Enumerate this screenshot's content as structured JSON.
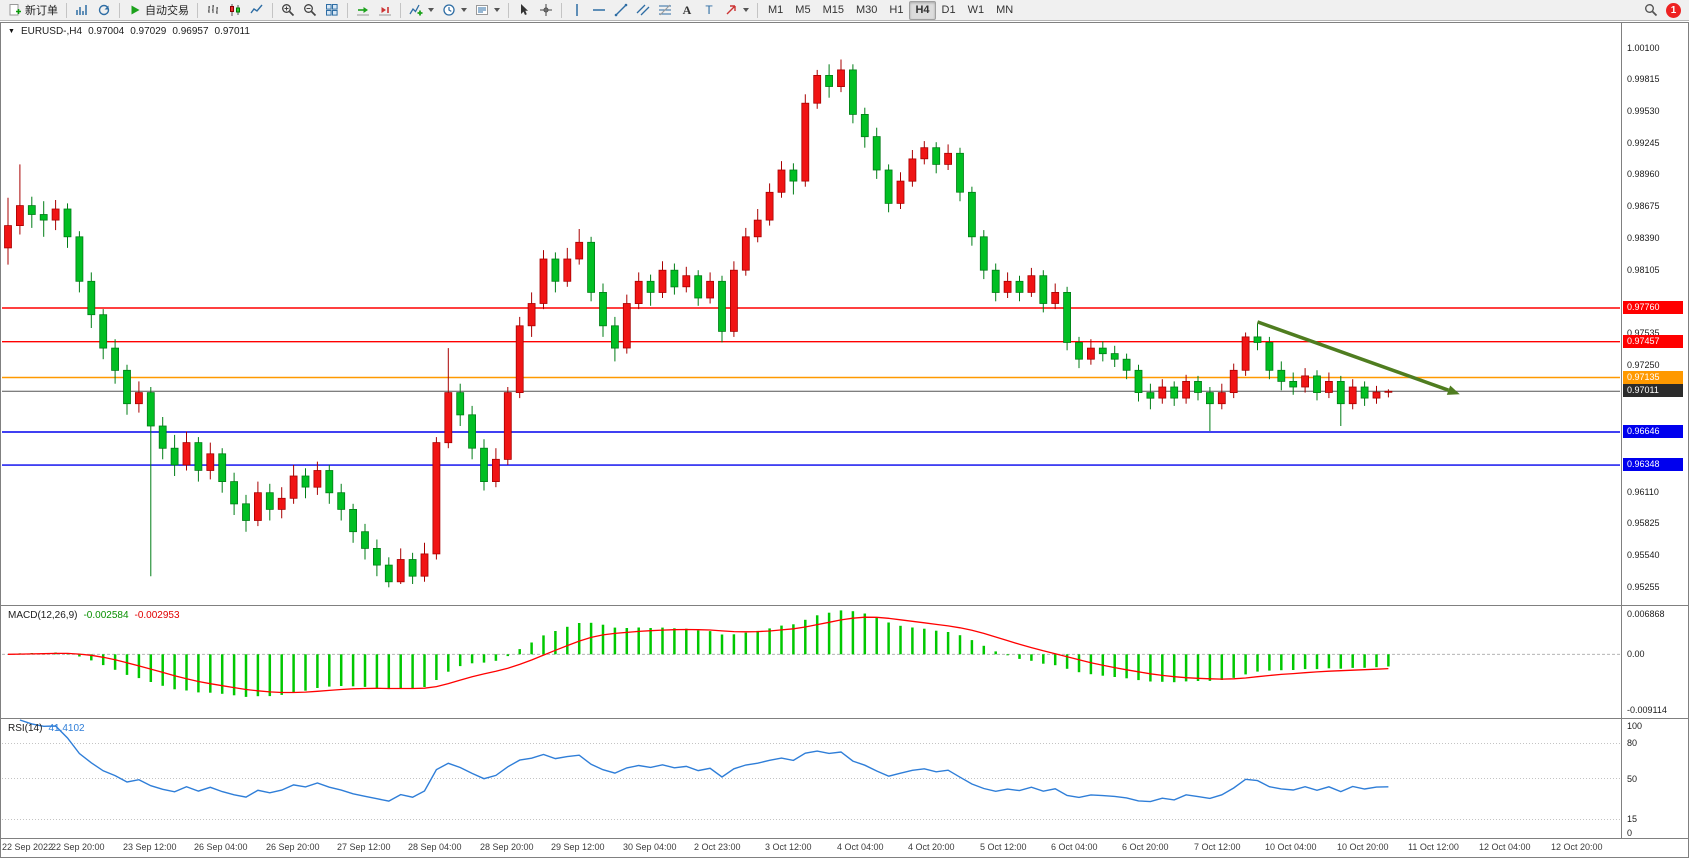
{
  "toolbar": {
    "groups": [
      {
        "name": "orders",
        "items": [
          {
            "name": "new-order-button",
            "icon": "new-order",
            "label": "新订单"
          }
        ]
      },
      {
        "name": "windows",
        "items": [
          {
            "name": "charts-window-button",
            "icon": "charts"
          },
          {
            "name": "refresh-button",
            "icon": "refresh"
          }
        ]
      },
      {
        "name": "autotrade",
        "items": [
          {
            "name": "autotrade-button",
            "icon": "autotrade",
            "label": "自动交易"
          }
        ]
      },
      {
        "name": "chart-type",
        "items": [
          {
            "name": "bar-chart-button",
            "icon": "bars"
          },
          {
            "name": "candle-chart-button",
            "icon": "candles"
          },
          {
            "name": "line-chart-button",
            "icon": "line"
          }
        ]
      },
      {
        "name": "zoom",
        "items": [
          {
            "name": "zoom-in-button",
            "icon": "zoom-in"
          },
          {
            "name": "zoom-out-button",
            "icon": "zoom-out"
          },
          {
            "name": "tile-windows-button",
            "icon": "tile"
          }
        ]
      },
      {
        "name": "scroll",
        "items": [
          {
            "name": "auto-scroll-button",
            "icon": "auto-scroll"
          },
          {
            "name": "chart-shift-button",
            "icon": "chart-shift"
          }
        ]
      },
      {
        "name": "insert",
        "items": [
          {
            "name": "indicators-button",
            "icon": "indicator-add",
            "caret": true
          },
          {
            "name": "periods-button",
            "icon": "clock",
            "caret": true
          },
          {
            "name": "templates-button",
            "icon": "template",
            "caret": true
          }
        ]
      },
      {
        "name": "pointer",
        "items": [
          {
            "name": "cursor-button",
            "icon": "cursor"
          },
          {
            "name": "crosshair-button",
            "icon": "crosshair"
          }
        ]
      },
      {
        "name": "objects",
        "items": [
          {
            "name": "vline-button",
            "icon": "vline"
          },
          {
            "name": "hline-button",
            "icon": "hline"
          },
          {
            "name": "trendline-button",
            "icon": "trendline"
          },
          {
            "name": "channel-button",
            "icon": "channel"
          },
          {
            "name": "fibonacci-button",
            "icon": "fibo"
          },
          {
            "name": "text-button",
            "icon": "text"
          },
          {
            "name": "label-button",
            "icon": "label"
          },
          {
            "name": "arrows-button",
            "icon": "arrow",
            "caret": true
          }
        ]
      }
    ],
    "timeframes": [
      {
        "label": "M1",
        "active": false
      },
      {
        "label": "M5",
        "active": false
      },
      {
        "label": "M15",
        "active": false
      },
      {
        "label": "M30",
        "active": false
      },
      {
        "label": "H1",
        "active": false
      },
      {
        "label": "H4",
        "active": true
      },
      {
        "label": "D1",
        "active": false
      },
      {
        "label": "W1",
        "active": false
      },
      {
        "label": "MN",
        "active": false
      }
    ],
    "right": {
      "badge": "1"
    }
  },
  "chart_header": {
    "symbol_period": "EURUSD-,H4",
    "open": "0.97004",
    "high": "0.97029",
    "low": "0.96957",
    "close": "0.97011"
  },
  "indicators": {
    "macd": {
      "label": "MACD(12,26,9)",
      "value_main": "-0.002584",
      "value_signal": "-0.002953",
      "scale_max": "0.006868",
      "scale_zero": "0.00",
      "scale_min": "-0.009114"
    },
    "rsi": {
      "label": "RSI(14)",
      "value": "41.4102",
      "scale_top": "100",
      "scale_bottom": "0",
      "levels": [
        80,
        50,
        15
      ]
    }
  },
  "price_axis_ticks": [
    "1.00100",
    "0.99815",
    "0.99530",
    "0.99245",
    "0.98960",
    "0.98675",
    "0.98390",
    "0.98105",
    "0.97820",
    "0.97535",
    "0.97250",
    "0.96965",
    "0.96680",
    "0.96395",
    "0.96110",
    "0.95825",
    "0.95540",
    "0.95255"
  ],
  "price_markers": [
    {
      "label": "0.97760",
      "price": 0.9776,
      "color": "#ff0000",
      "current": false
    },
    {
      "label": "0.97457",
      "price": 0.97457,
      "color": "#ff0000",
      "current": false
    },
    {
      "label": "0.97135",
      "price": 0.97135,
      "color": "#ff9900",
      "current": false
    },
    {
      "label": "0.97011",
      "price": 0.97011,
      "color": "#2b2b2b",
      "current": true
    },
    {
      "label": "0.96646",
      "price": 0.96646,
      "color": "#0000ee",
      "current": false
    },
    {
      "label": "0.96348",
      "price": 0.96348,
      "color": "#0000ee",
      "current": false
    }
  ],
  "time_axis": [
    "22 Sep 2022",
    "22 Sep 20:00",
    "23 Sep 12:00",
    "26 Sep 04:00",
    "26 Sep 20:00",
    "27 Sep 12:00",
    "28 Sep 04:00",
    "28 Sep 20:00",
    "29 Sep 12:00",
    "30 Sep 04:00",
    "2 Oct 23:00",
    "3 Oct 12:00",
    "4 Oct 04:00",
    "4 Oct 20:00",
    "5 Oct 12:00",
    "6 Oct 04:00",
    "6 Oct 20:00",
    "7 Oct 12:00",
    "10 Oct 04:00",
    "10 Oct 20:00",
    "11 Oct 12:00",
    "12 Oct 04:00",
    "12 Oct 20:00"
  ],
  "chart_data": {
    "type": "candlestick",
    "symbol": "EURUSD-",
    "period": "H4",
    "ylim": [
      0.951,
      1.0033
    ],
    "label_every_bars": 6,
    "candles": [
      [
        0.983,
        0.9875,
        0.9815,
        0.985
      ],
      [
        0.985,
        0.9905,
        0.9842,
        0.9868
      ],
      [
        0.9868,
        0.9876,
        0.9848,
        0.986
      ],
      [
        0.986,
        0.9872,
        0.984,
        0.9855
      ],
      [
        0.9855,
        0.9873,
        0.9846,
        0.9865
      ],
      [
        0.9865,
        0.987,
        0.983,
        0.984
      ],
      [
        0.984,
        0.9845,
        0.979,
        0.98
      ],
      [
        0.98,
        0.9808,
        0.9758,
        0.977
      ],
      [
        0.977,
        0.9775,
        0.973,
        0.974
      ],
      [
        0.974,
        0.9748,
        0.9708,
        0.972
      ],
      [
        0.972,
        0.9725,
        0.968,
        0.969
      ],
      [
        0.969,
        0.971,
        0.9682,
        0.97
      ],
      [
        0.97,
        0.9705,
        0.9535,
        0.967
      ],
      [
        0.967,
        0.9678,
        0.964,
        0.965
      ],
      [
        0.965,
        0.9662,
        0.9625,
        0.9635
      ],
      [
        0.9635,
        0.9665,
        0.963,
        0.9655
      ],
      [
        0.9655,
        0.966,
        0.962,
        0.963
      ],
      [
        0.963,
        0.9655,
        0.9622,
        0.9645
      ],
      [
        0.9645,
        0.965,
        0.961,
        0.962
      ],
      [
        0.962,
        0.9628,
        0.959,
        0.96
      ],
      [
        0.96,
        0.9608,
        0.9575,
        0.9585
      ],
      [
        0.9585,
        0.962,
        0.958,
        0.961
      ],
      [
        0.961,
        0.9618,
        0.9585,
        0.9595
      ],
      [
        0.9595,
        0.9615,
        0.9587,
        0.9605
      ],
      [
        0.9605,
        0.9635,
        0.96,
        0.9625
      ],
      [
        0.9625,
        0.9632,
        0.9605,
        0.9615
      ],
      [
        0.9615,
        0.9638,
        0.9608,
        0.963
      ],
      [
        0.963,
        0.9635,
        0.96,
        0.961
      ],
      [
        0.961,
        0.9618,
        0.9585,
        0.9595
      ],
      [
        0.9595,
        0.96,
        0.9565,
        0.9575
      ],
      [
        0.9575,
        0.9582,
        0.955,
        0.956
      ],
      [
        0.956,
        0.9568,
        0.9535,
        0.9545
      ],
      [
        0.9545,
        0.9552,
        0.9525,
        0.953
      ],
      [
        0.953,
        0.956,
        0.9528,
        0.955
      ],
      [
        0.955,
        0.9556,
        0.9528,
        0.9535
      ],
      [
        0.9535,
        0.9565,
        0.953,
        0.9555
      ],
      [
        0.9555,
        0.966,
        0.955,
        0.9655
      ],
      [
        0.9655,
        0.974,
        0.965,
        0.97
      ],
      [
        0.97,
        0.9708,
        0.967,
        0.968
      ],
      [
        0.968,
        0.9688,
        0.964,
        0.965
      ],
      [
        0.965,
        0.9658,
        0.9612,
        0.962
      ],
      [
        0.962,
        0.965,
        0.9615,
        0.964
      ],
      [
        0.964,
        0.9705,
        0.9635,
        0.97
      ],
      [
        0.97,
        0.9768,
        0.9695,
        0.976
      ],
      [
        0.976,
        0.979,
        0.975,
        0.978
      ],
      [
        0.978,
        0.9828,
        0.9775,
        0.982
      ],
      [
        0.982,
        0.9826,
        0.979,
        0.98
      ],
      [
        0.98,
        0.983,
        0.9795,
        0.982
      ],
      [
        0.982,
        0.9847,
        0.9815,
        0.9835
      ],
      [
        0.9835,
        0.984,
        0.9782,
        0.979
      ],
      [
        0.979,
        0.9798,
        0.975,
        0.976
      ],
      [
        0.976,
        0.9768,
        0.9728,
        0.974
      ],
      [
        0.974,
        0.9788,
        0.9735,
        0.978
      ],
      [
        0.978,
        0.9808,
        0.9775,
        0.98
      ],
      [
        0.98,
        0.9806,
        0.9778,
        0.979
      ],
      [
        0.979,
        0.9818,
        0.9785,
        0.981
      ],
      [
        0.981,
        0.9816,
        0.9788,
        0.9795
      ],
      [
        0.9795,
        0.9813,
        0.979,
        0.9805
      ],
      [
        0.9805,
        0.981,
        0.9778,
        0.9785
      ],
      [
        0.9785,
        0.9808,
        0.978,
        0.98
      ],
      [
        0.98,
        0.9805,
        0.9745,
        0.9755
      ],
      [
        0.9755,
        0.9818,
        0.975,
        0.981
      ],
      [
        0.981,
        0.9848,
        0.9805,
        0.984
      ],
      [
        0.984,
        0.9865,
        0.9835,
        0.9855
      ],
      [
        0.9855,
        0.9888,
        0.985,
        0.988
      ],
      [
        0.988,
        0.9908,
        0.9875,
        0.99
      ],
      [
        0.99,
        0.9906,
        0.9878,
        0.989
      ],
      [
        0.989,
        0.9968,
        0.9885,
        0.996
      ],
      [
        0.996,
        0.999,
        0.9955,
        0.9985
      ],
      [
        0.9985,
        0.9995,
        0.9965,
        0.9975
      ],
      [
        0.9975,
        0.99993,
        0.997,
        0.999
      ],
      [
        0.999,
        0.9995,
        0.9942,
        0.995
      ],
      [
        0.995,
        0.9956,
        0.992,
        0.993
      ],
      [
        0.993,
        0.9938,
        0.9892,
        0.99
      ],
      [
        0.99,
        0.9905,
        0.9862,
        0.987
      ],
      [
        0.987,
        0.9898,
        0.9865,
        0.989
      ],
      [
        0.989,
        0.9918,
        0.9885,
        0.991
      ],
      [
        0.991,
        0.9926,
        0.9905,
        0.992
      ],
      [
        0.992,
        0.9925,
        0.9897,
        0.9905
      ],
      [
        0.9905,
        0.9923,
        0.99,
        0.9915
      ],
      [
        0.9915,
        0.992,
        0.9872,
        0.988
      ],
      [
        0.988,
        0.9885,
        0.9832,
        0.984
      ],
      [
        0.984,
        0.9846,
        0.9802,
        0.981
      ],
      [
        0.981,
        0.9816,
        0.9782,
        0.979
      ],
      [
        0.979,
        0.9808,
        0.9785,
        0.98
      ],
      [
        0.98,
        0.9805,
        0.9782,
        0.979
      ],
      [
        0.979,
        0.9812,
        0.9786,
        0.9805
      ],
      [
        0.9805,
        0.981,
        0.9772,
        0.978
      ],
      [
        0.978,
        0.9798,
        0.9775,
        0.979
      ],
      [
        0.979,
        0.9795,
        0.9738,
        0.9745
      ],
      [
        0.9745,
        0.975,
        0.9722,
        0.973
      ],
      [
        0.973,
        0.9748,
        0.9725,
        0.974
      ],
      [
        0.974,
        0.9746,
        0.9728,
        0.9735
      ],
      [
        0.9735,
        0.9742,
        0.9723,
        0.973
      ],
      [
        0.973,
        0.9735,
        0.9712,
        0.972
      ],
      [
        0.972,
        0.9725,
        0.9692,
        0.97
      ],
      [
        0.97,
        0.9708,
        0.9685,
        0.9695
      ],
      [
        0.9695,
        0.9712,
        0.969,
        0.9705
      ],
      [
        0.9705,
        0.971,
        0.9688,
        0.9695
      ],
      [
        0.9695,
        0.9716,
        0.969,
        0.971
      ],
      [
        0.971,
        0.9715,
        0.9693,
        0.97
      ],
      [
        0.97,
        0.9705,
        0.96655,
        0.969
      ],
      [
        0.969,
        0.9708,
        0.9685,
        0.97
      ],
      [
        0.97,
        0.9726,
        0.9695,
        0.972
      ],
      [
        0.972,
        0.9754,
        0.9715,
        0.975
      ],
      [
        0.975,
        0.9762,
        0.9738,
        0.9745
      ],
      [
        0.9745,
        0.975,
        0.9712,
        0.972
      ],
      [
        0.972,
        0.9728,
        0.9702,
        0.971
      ],
      [
        0.971,
        0.9718,
        0.9698,
        0.9705
      ],
      [
        0.9705,
        0.9722,
        0.97,
        0.9715
      ],
      [
        0.9715,
        0.972,
        0.9693,
        0.97
      ],
      [
        0.97,
        0.9718,
        0.9695,
        0.971
      ],
      [
        0.971,
        0.9715,
        0.967,
        0.969
      ],
      [
        0.969,
        0.9712,
        0.9685,
        0.9705
      ],
      [
        0.9705,
        0.971,
        0.9688,
        0.9695
      ],
      [
        0.9695,
        0.9706,
        0.969,
        0.97004
      ],
      [
        0.97004,
        0.97029,
        0.96957,
        0.97011
      ]
    ],
    "macd": {
      "fast": 12,
      "slow": 26,
      "signal": 9,
      "ylim": [
        -0.009114,
        0.006868
      ]
    },
    "rsi": {
      "period": 14,
      "ylim": [
        0,
        100
      ]
    },
    "trend_arrow": {
      "from_bar": 105,
      "from_price": 0.97635,
      "to_bar": 122,
      "to_price": 0.96985,
      "color": "#4f7d20"
    }
  },
  "colors": {
    "bull": "#f01414",
    "bull_border": "#a80000",
    "bear": "#00bf23",
    "bear_border": "#007d16",
    "macd_hist": "#00c800",
    "macd_signal": "#ff0000",
    "rsi_line": "#2f7ed8",
    "panel_border": "#808080",
    "level_dash": "#b0b0b0"
  }
}
